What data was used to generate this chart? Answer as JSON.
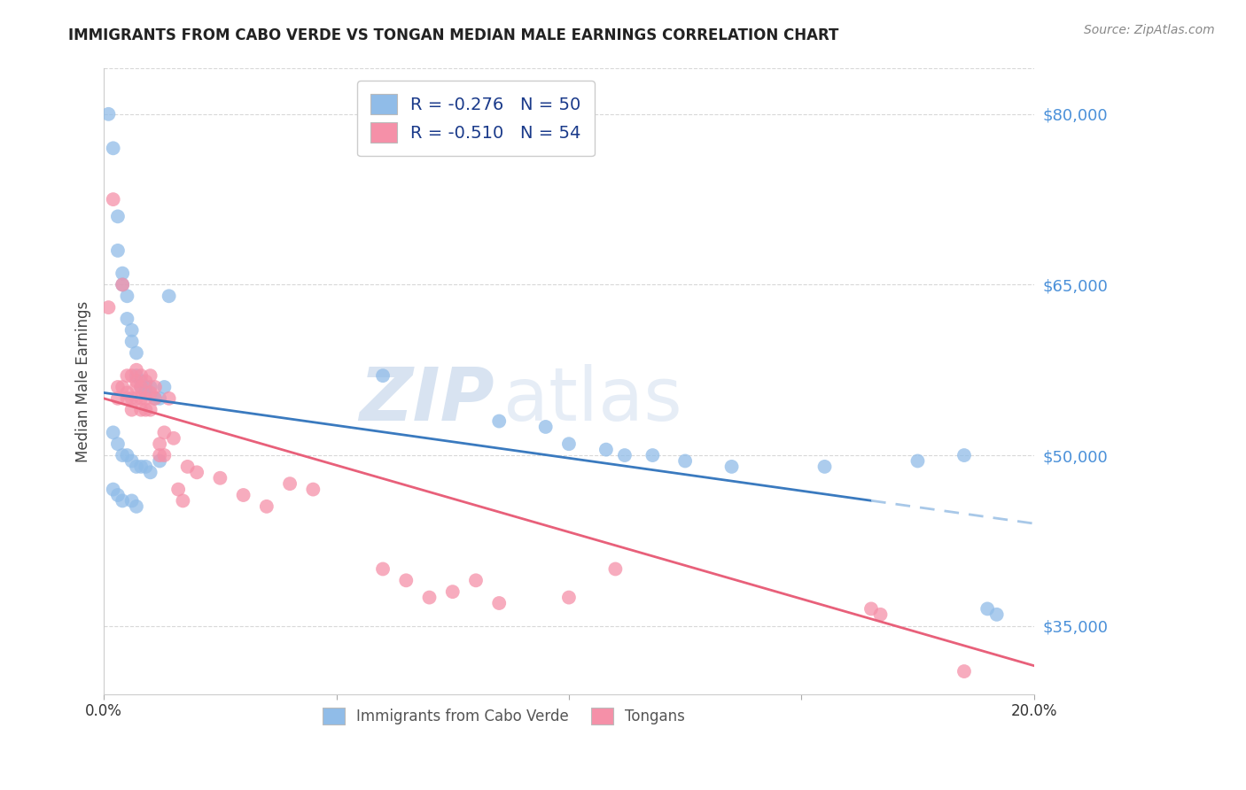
{
  "title": "IMMIGRANTS FROM CABO VERDE VS TONGAN MEDIAN MALE EARNINGS CORRELATION CHART",
  "source": "Source: ZipAtlas.com",
  "ylabel": "Median Male Earnings",
  "xlim": [
    0.0,
    0.2
  ],
  "ylim": [
    29000,
    84000
  ],
  "yticks": [
    35000,
    50000,
    65000,
    80000
  ],
  "ytick_labels": [
    "$35,000",
    "$50,000",
    "$65,000",
    "$80,000"
  ],
  "xticks": [
    0.0,
    0.05,
    0.1,
    0.15,
    0.2
  ],
  "xtick_labels": [
    "0.0%",
    "",
    "",
    "",
    "20.0%"
  ],
  "watermark_zip": "ZIP",
  "watermark_atlas": "atlas",
  "cabo_verde_color": "#90bce8",
  "tongans_color": "#f590a8",
  "trend_blue_solid_color": "#3a7abf",
  "trend_blue_dashed_color": "#a8c8e8",
  "trend_pink_color": "#e8607a",
  "trend_blue_x0": 0.0,
  "trend_blue_y0": 55500,
  "trend_blue_x1": 0.2,
  "trend_blue_y1": 44000,
  "trend_blue_solid_end": 0.165,
  "trend_pink_x0": 0.0,
  "trend_pink_y0": 55000,
  "trend_pink_x1": 0.2,
  "trend_pink_y1": 31500,
  "cabo_verde_x": [
    0.001,
    0.002,
    0.003,
    0.003,
    0.004,
    0.004,
    0.005,
    0.005,
    0.006,
    0.006,
    0.007,
    0.007,
    0.008,
    0.008,
    0.009,
    0.009,
    0.01,
    0.011,
    0.012,
    0.013,
    0.014,
    0.002,
    0.003,
    0.004,
    0.005,
    0.006,
    0.007,
    0.008,
    0.009,
    0.01,
    0.012,
    0.002,
    0.003,
    0.004,
    0.006,
    0.007,
    0.06,
    0.085,
    0.095,
    0.1,
    0.108,
    0.112,
    0.118,
    0.125,
    0.135,
    0.155,
    0.175,
    0.185,
    0.19,
    0.192
  ],
  "cabo_verde_y": [
    80000,
    77000,
    71000,
    68000,
    66000,
    65000,
    64000,
    62000,
    61000,
    60000,
    59000,
    57000,
    56000,
    56500,
    56000,
    55500,
    56000,
    55000,
    55000,
    56000,
    64000,
    52000,
    51000,
    50000,
    50000,
    49500,
    49000,
    49000,
    49000,
    48500,
    49500,
    47000,
    46500,
    46000,
    46000,
    45500,
    57000,
    53000,
    52500,
    51000,
    50500,
    50000,
    50000,
    49500,
    49000,
    49000,
    49500,
    50000,
    36500,
    36000
  ],
  "tongans_x": [
    0.001,
    0.002,
    0.003,
    0.003,
    0.004,
    0.004,
    0.005,
    0.005,
    0.005,
    0.006,
    0.006,
    0.006,
    0.007,
    0.007,
    0.007,
    0.007,
    0.008,
    0.008,
    0.008,
    0.008,
    0.009,
    0.009,
    0.009,
    0.01,
    0.01,
    0.01,
    0.011,
    0.011,
    0.012,
    0.012,
    0.013,
    0.013,
    0.014,
    0.015,
    0.016,
    0.017,
    0.018,
    0.02,
    0.025,
    0.03,
    0.035,
    0.04,
    0.045,
    0.06,
    0.065,
    0.07,
    0.075,
    0.08,
    0.085,
    0.1,
    0.11,
    0.165,
    0.167,
    0.185
  ],
  "tongans_y": [
    63000,
    72500,
    56000,
    55000,
    65000,
    56000,
    57000,
    55500,
    55000,
    57000,
    55000,
    54000,
    57500,
    56500,
    56000,
    55000,
    57000,
    56000,
    55000,
    54000,
    56500,
    55000,
    54000,
    57000,
    55500,
    54000,
    56000,
    55000,
    51000,
    50000,
    52000,
    50000,
    55000,
    51500,
    47000,
    46000,
    49000,
    48500,
    48000,
    46500,
    45500,
    47500,
    47000,
    40000,
    39000,
    37500,
    38000,
    39000,
    37000,
    37500,
    40000,
    36500,
    36000,
    31000
  ],
  "legend1_label_r": "R = -0.276",
  "legend1_label_n": "N = 50",
  "legend2_label_r": "R = -0.510",
  "legend2_label_n": "N = 54",
  "bottom_legend1": "Immigrants from Cabo Verde",
  "bottom_legend2": "Tongans",
  "grid_color": "#d8d8d8",
  "axis_text_color": "#4a90d9",
  "title_color": "#222222",
  "source_color": "#888888"
}
